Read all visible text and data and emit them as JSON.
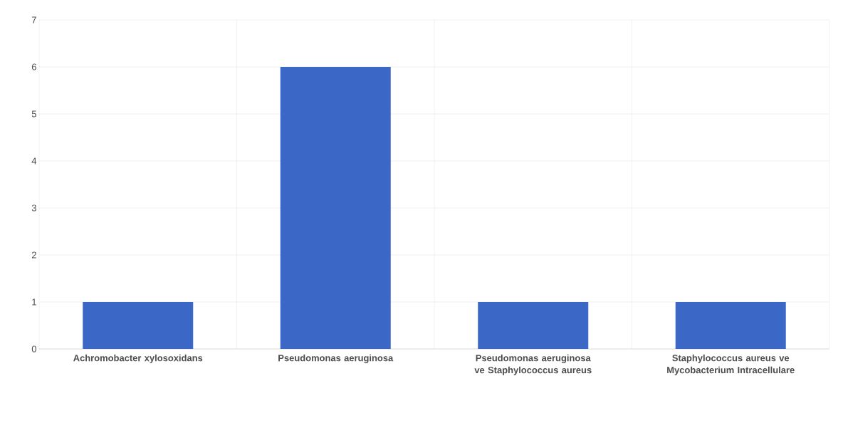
{
  "chart_data": {
    "type": "bar",
    "categories": [
      "Achromobacter xylosoxidans",
      "Pseudomonas aeruginosa",
      "Pseudomonas aeruginosa ve Staphylococcus aureus",
      "Staphylococcus aureus ve Mycobacterium Intracellulare"
    ],
    "values": [
      1,
      6,
      1,
      1
    ],
    "color": "#3b68c6",
    "ylim": [
      0,
      7
    ],
    "yticks": [
      0,
      1,
      2,
      3,
      4,
      5,
      6,
      7
    ],
    "grid": true
  }
}
